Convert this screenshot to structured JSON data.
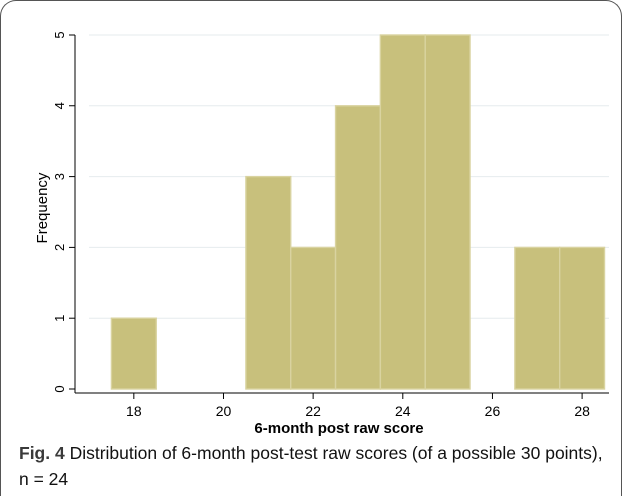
{
  "figure": {
    "caption_label": "Fig. 4",
    "caption_text": "Distribution of 6-month post-test raw scores (of a possible 30 points), n = 24"
  },
  "chart_data": {
    "type": "bar",
    "subtype": "histogram",
    "title": "",
    "xlabel": "6-month post raw score",
    "ylabel": "Frequency",
    "xlim": [
      17.0,
      28.6
    ],
    "ylim": [
      0,
      5
    ],
    "xticks": [
      18,
      20,
      22,
      24,
      26,
      28
    ],
    "yticks": [
      0,
      1,
      2,
      3,
      4,
      5
    ],
    "bin_width": 1,
    "bins": [
      {
        "x": 18,
        "count": 1
      },
      {
        "x": 19,
        "count": 0
      },
      {
        "x": 20,
        "count": 0
      },
      {
        "x": 21,
        "count": 3
      },
      {
        "x": 22,
        "count": 2
      },
      {
        "x": 23,
        "count": 4
      },
      {
        "x": 24,
        "count": 5
      },
      {
        "x": 25,
        "count": 5
      },
      {
        "x": 26,
        "count": 0
      },
      {
        "x": 27,
        "count": 2
      },
      {
        "x": 28,
        "count": 2
      }
    ],
    "grid": "horizontal",
    "bar_color": "#c8c07c",
    "bar_edge_color": "#d9d3a0"
  }
}
